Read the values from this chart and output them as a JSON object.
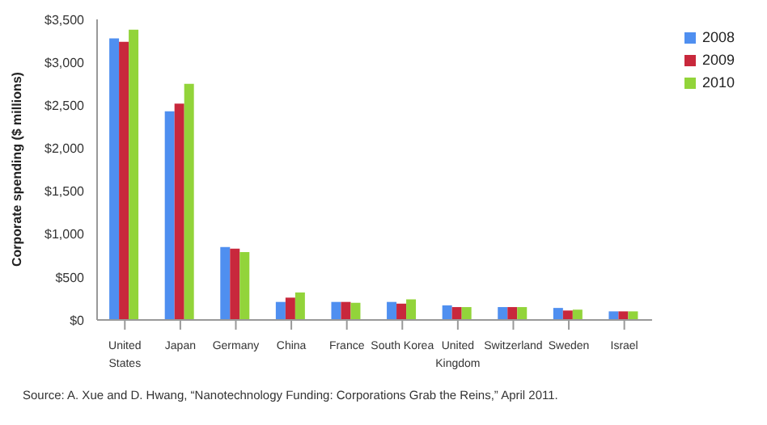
{
  "chart_data": {
    "type": "bar",
    "ylabel": "Corporate spending ($ millions)",
    "categories": [
      "United States",
      "Japan",
      "Germany",
      "China",
      "France",
      "South Korea",
      "United Kingdom",
      "Switzerland",
      "Sweden",
      "Israel"
    ],
    "series": [
      {
        "name": "2008",
        "color": "#4f8ff0",
        "values": [
          3280,
          2430,
          850,
          210,
          210,
          210,
          170,
          150,
          140,
          100
        ]
      },
      {
        "name": "2009",
        "color": "#c8283c",
        "values": [
          3240,
          2520,
          830,
          260,
          210,
          190,
          150,
          150,
          110,
          100
        ]
      },
      {
        "name": "2010",
        "color": "#92d43a",
        "values": [
          3380,
          2750,
          790,
          320,
          200,
          240,
          150,
          150,
          120,
          100
        ]
      }
    ],
    "ylim": [
      0,
      3500
    ],
    "yticks": [
      {
        "value": 0,
        "label": "$0"
      },
      {
        "value": 500,
        "label": "$500"
      },
      {
        "value": 1000,
        "label": "$1,000"
      },
      {
        "value": 1500,
        "label": "$1,500"
      },
      {
        "value": 2000,
        "label": "$2,000"
      },
      {
        "value": 2500,
        "label": "$2,500"
      },
      {
        "value": 3000,
        "label": "$3,000"
      },
      {
        "value": 3500,
        "label": "$3,500"
      }
    ],
    "grid": false,
    "legend": "top right",
    "annotations": [
      "Source: A. Xue and D. Hwang, “Nanotechnology Funding: Corporations Grab the Reins,” April 2011."
    ]
  }
}
